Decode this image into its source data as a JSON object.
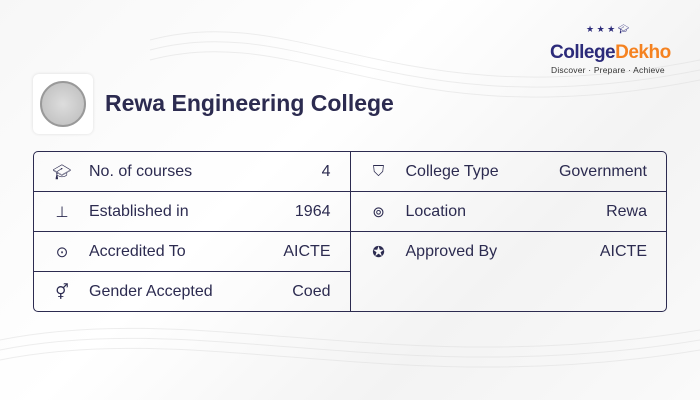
{
  "brand": {
    "name_part1": "College",
    "name_part2": "Dekho",
    "tagline": "Discover · Prepare · Achieve",
    "colors": {
      "primary": "#2c2b7a",
      "accent": "#f58220"
    }
  },
  "college": {
    "name": "Rewa Engineering College",
    "logo_icon": "college-seal"
  },
  "left_rows": [
    {
      "icon": "graduation-cap-icon",
      "glyph": "🎓︎",
      "label": "No. of courses",
      "value": "4"
    },
    {
      "icon": "pin-icon",
      "glyph": "⊥",
      "label": "Established in",
      "value": "1964"
    },
    {
      "icon": "check-circle-icon",
      "glyph": "⊙",
      "label": "Accredited To",
      "value": "AICTE"
    },
    {
      "icon": "gender-icon",
      "glyph": "⚥",
      "label": "Gender Accepted",
      "value": "Coed"
    }
  ],
  "right_rows": [
    {
      "icon": "bookmark-icon",
      "glyph": "⛉",
      "label": "College Type",
      "value": "Government"
    },
    {
      "icon": "location-icon",
      "glyph": "⊚",
      "label": "Location",
      "value": "Rewa"
    },
    {
      "icon": "badge-icon",
      "glyph": "✪",
      "label": "Approved By",
      "value": "AICTE"
    }
  ]
}
